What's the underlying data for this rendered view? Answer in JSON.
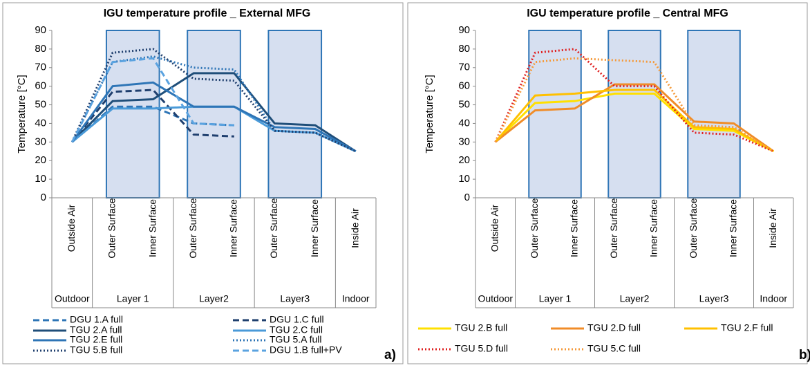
{
  "chart_data": [
    {
      "type": "line",
      "title": "IGU temperature profile _ External MFG",
      "y_label": "Temperature [°C]",
      "panel_label": "a)",
      "categories": [
        "Outside Air",
        "Outer Surface",
        "Inner Surface",
        "Outer Surface",
        "Inner Surface",
        "Outer Surface",
        "Inner Surface",
        "Inside Air"
      ],
      "groups": [
        "Outdoor",
        "Layer 1",
        "Layer2",
        "Layer3",
        "Indoor"
      ],
      "ylim": [
        0,
        90
      ],
      "yticks": [
        0,
        10,
        20,
        30,
        40,
        50,
        60,
        70,
        80,
        90
      ],
      "series": [
        {
          "name": "DGU 1.A full",
          "color": "#2e75b6",
          "dash": "dashed",
          "values": [
            30,
            49,
            49,
            40,
            39,
            null,
            null,
            null
          ]
        },
        {
          "name": "DGU 1.C full",
          "color": "#1f3f6e",
          "dash": "dashed",
          "values": [
            30,
            57,
            58,
            34,
            33,
            null,
            null,
            null
          ]
        },
        {
          "name": "TGU 2.A full",
          "color": "#1f4e79",
          "dash": "solid",
          "values": [
            30,
            52,
            53,
            67,
            67,
            40,
            39,
            25
          ]
        },
        {
          "name": "TGU 2.C full",
          "color": "#4a9ad8",
          "dash": "solid",
          "values": [
            30,
            48,
            48,
            49,
            49,
            36,
            35,
            25
          ]
        },
        {
          "name": "TGU 2.E full",
          "color": "#2e75b6",
          "dash": "solid",
          "values": [
            30,
            60,
            62,
            49,
            49,
            38,
            37,
            25
          ]
        },
        {
          "name": "TGU 5.A full",
          "color": "#2e75b6",
          "dash": "dotted",
          "values": [
            30,
            73,
            76,
            70,
            69,
            36,
            35,
            25
          ]
        },
        {
          "name": "TGU 5.B full",
          "color": "#1f3f6e",
          "dash": "dotted",
          "values": [
            30,
            78,
            80,
            64,
            63,
            36,
            35,
            25
          ]
        },
        {
          "name": "DGU 1.B full+PV",
          "color": "#5ba3e0",
          "dash": "dashed",
          "values": [
            30,
            73,
            75,
            40,
            39,
            null,
            null,
            null
          ]
        }
      ]
    },
    {
      "type": "line",
      "title": "IGU temperature profile _ Central MFG",
      "y_label": "Temperature [°C]",
      "panel_label": "b)",
      "categories": [
        "Outside Air",
        "Outer Surface",
        "Inner Surface",
        "Outer Surface",
        "Inner Surface",
        "Outer Surface",
        "Inner Surface",
        "Inside Air"
      ],
      "groups": [
        "Outdoor",
        "Layer 1",
        "Layer2",
        "Layer3",
        "Indoor"
      ],
      "ylim": [
        0,
        90
      ],
      "yticks": [
        0,
        10,
        20,
        30,
        40,
        50,
        60,
        70,
        80,
        90
      ],
      "series": [
        {
          "name": "TGU 2.B full",
          "color": "#ffe000",
          "dash": "solid",
          "values": [
            30,
            51,
            52,
            56,
            56,
            37,
            36,
            25
          ]
        },
        {
          "name": "TGU 2.D full",
          "color": "#f08c28",
          "dash": "solid",
          "values": [
            30,
            47,
            48,
            61,
            61,
            41,
            40,
            25
          ]
        },
        {
          "name": "TGU 2.F full",
          "color": "#ffc000",
          "dash": "solid",
          "values": [
            30,
            55,
            56,
            58,
            58,
            38,
            37,
            25
          ]
        },
        {
          "name": "TGU 5.D full",
          "color": "#e02020",
          "dash": "dotted",
          "values": [
            30,
            78,
            80,
            60,
            60,
            35,
            34,
            25
          ]
        },
        {
          "name": "TGU 5.C full",
          "color": "#f59a3a",
          "dash": "dotted",
          "values": [
            30,
            73,
            75,
            74,
            73,
            39,
            38,
            25
          ]
        }
      ]
    }
  ]
}
